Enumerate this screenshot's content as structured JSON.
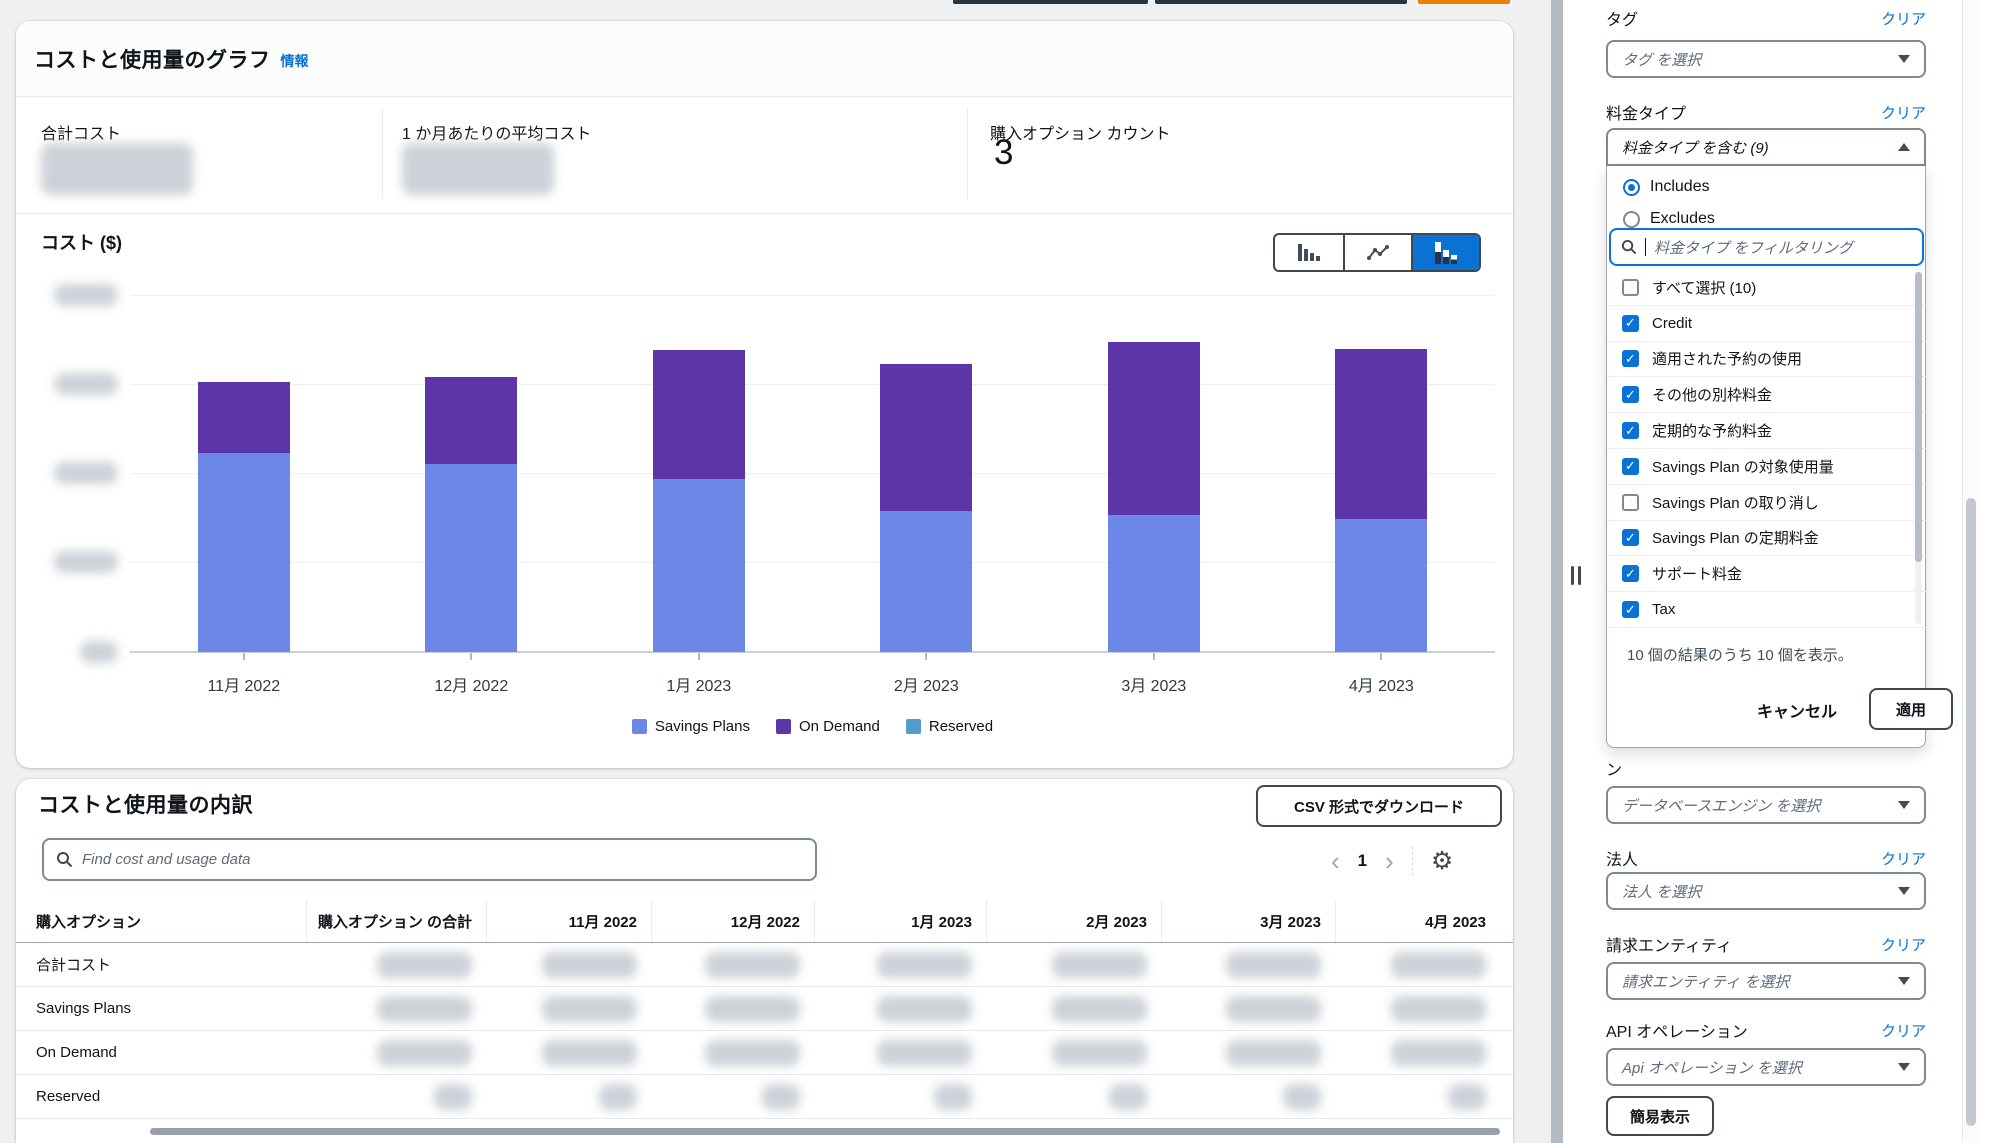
{
  "top_bar": {
    "cropped_buttons": [
      {
        "name": "dark-button-left",
        "color": "#2b3540"
      },
      {
        "name": "dark-button-right",
        "color": "#2b3540"
      },
      {
        "name": "orange-primary-button",
        "color": "#ec8000"
      }
    ]
  },
  "chart_card": {
    "title": "コストと使用量のグラフ",
    "info_link": "情報",
    "stats": [
      {
        "label": "合計コスト",
        "value": "",
        "redacted": true
      },
      {
        "label": "1 か月あたりの平均コスト",
        "value": "",
        "redacted": true
      },
      {
        "label": "購入オプション カウント",
        "value": "3",
        "redacted": false
      }
    ],
    "axis_title": "コスト ($)",
    "chart_type_toggle": {
      "options": [
        "bar-chart",
        "line-chart",
        "stacked-bar-chart"
      ],
      "selected": "stacked-bar-chart"
    }
  },
  "chart_data": {
    "type": "bar",
    "stacked": true,
    "title": "コスト ($)",
    "ylabel": "コスト ($)",
    "xlabel": "",
    "categories": [
      "11月 2022",
      "12月 2022",
      "1月 2023",
      "2月 2023",
      "3月 2023",
      "4月 2023"
    ],
    "series": [
      {
        "name": "Savings Plans",
        "color": "#6d87e8",
        "values": [
          2.23,
          2.11,
          1.94,
          1.58,
          1.53,
          1.49
        ]
      },
      {
        "name": "On Demand",
        "color": "#5c35a8",
        "values": [
          0.8,
          0.97,
          1.45,
          1.65,
          1.94,
          1.91
        ]
      },
      {
        "name": "Reserved",
        "color": "#4f9dc9",
        "values": [
          0,
          0,
          0,
          0,
          0,
          0
        ]
      }
    ],
    "ylim": [
      0,
      4
    ],
    "grid": true,
    "legend_position": "bottom",
    "note": "y-axis tick labels and all cost values are blurred (redacted) in the source; series values are relative units estimated from gridlines"
  },
  "table_card": {
    "title": "コストと使用量の内訳",
    "csv_button": "CSV 形式でダウンロード",
    "search": {
      "placeholder": "Find cost and usage data"
    },
    "pagination": {
      "prev": "‹",
      "page": "1",
      "next": "›"
    },
    "columns": [
      "購入オプション",
      "購入オプション の合計",
      "11月 2022",
      "12月 2022",
      "1月 2023",
      "2月 2023",
      "3月 2023",
      "4月 2023"
    ],
    "rows": [
      {
        "label": "合計コスト",
        "values_redacted": true
      },
      {
        "label": "Savings Plans",
        "values_redacted": true
      },
      {
        "label": "On Demand",
        "values_redacted": true
      },
      {
        "label": "Reserved",
        "values_redacted": true
      }
    ]
  },
  "filters": {
    "clear_label": "クリア",
    "tag": {
      "label": "タグ",
      "placeholder": "タグ を選択"
    },
    "price_type": {
      "label": "料金タイプ",
      "trigger": "料金タイプ を含む (9)",
      "mode": {
        "includes": "Includes",
        "excludes": "Excludes",
        "selected": "Includes"
      },
      "search_placeholder": "料金タイプ をフィルタリング",
      "options": [
        {
          "label": "すべて選択 (10)",
          "checked": false
        },
        {
          "label": "Credit",
          "checked": true
        },
        {
          "label": "適用された予約の使用",
          "checked": true
        },
        {
          "label": "その他の別枠料金",
          "checked": true
        },
        {
          "label": "定期的な予約料金",
          "checked": true
        },
        {
          "label": "Savings Plan の対象使用量",
          "checked": true
        },
        {
          "label": "Savings Plan の取り消し",
          "checked": false
        },
        {
          "label": "Savings Plan の定期料金",
          "checked": true
        },
        {
          "label": "サポート料金",
          "checked": true
        },
        {
          "label": "Tax",
          "checked": true
        }
      ],
      "results_text": "10 個の結果のうち 10 個を表示。",
      "cancel_label": "キャンセル",
      "apply_label": "適用"
    },
    "database_engine": {
      "label_partial": "ン",
      "placeholder": "データベースエンジン を選択"
    },
    "legal_entity": {
      "label": "法人",
      "placeholder": "法人 を選択"
    },
    "billing_entity": {
      "label": "請求エンティティ",
      "placeholder": "請求エンティティ を選択"
    },
    "api_operation": {
      "label": "API オペレーション",
      "placeholder": "Api オペレーション を選択"
    },
    "simple_view_button": "簡易表示"
  },
  "colors": {
    "accent": "#0972d3",
    "savings_plans": "#6d87e8",
    "on_demand": "#5c35a8",
    "reserved": "#4f9dc9"
  }
}
